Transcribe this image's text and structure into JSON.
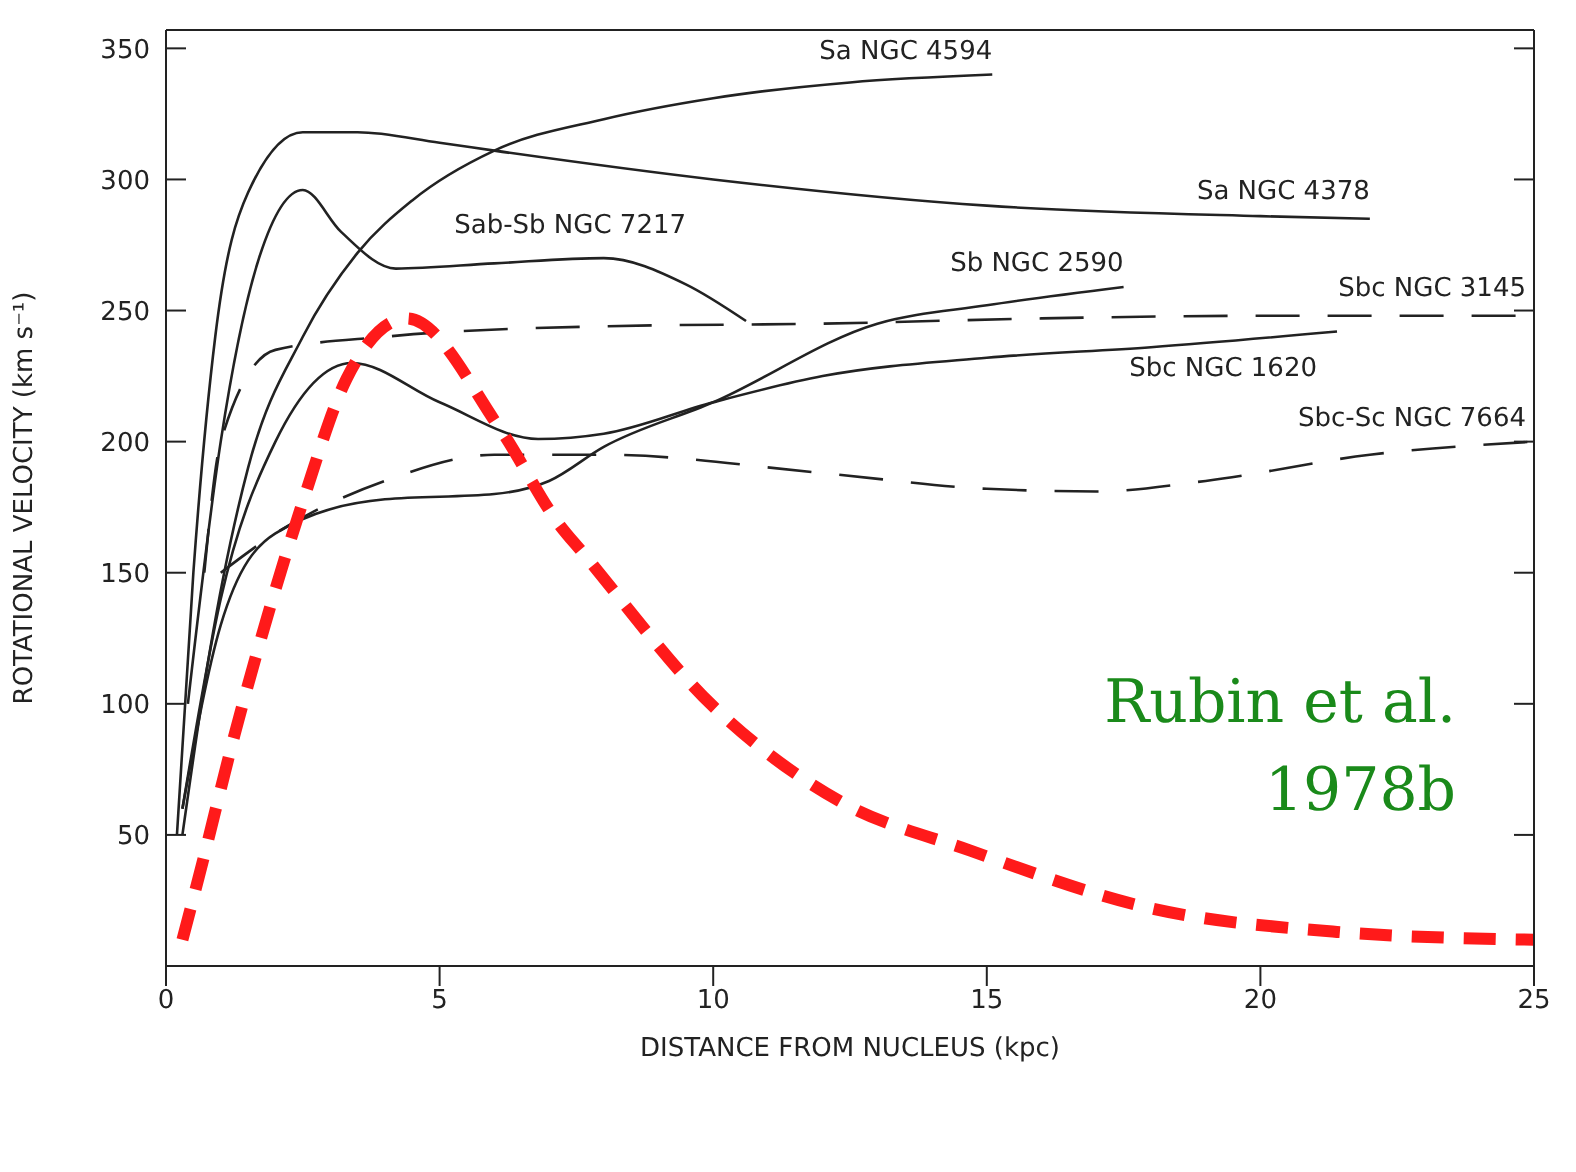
{
  "chart_data": {
    "type": "line",
    "xlabel": "DISTANCE FROM NUCLEUS (kpc)",
    "ylabel": "ROTATIONAL VELOCITY (km s⁻¹)",
    "xlim": [
      0,
      25
    ],
    "xticks": [
      0,
      5,
      10,
      15,
      20,
      25
    ],
    "ylim": [
      0,
      357
    ],
    "yticks": [
      50,
      100,
      150,
      200,
      250,
      300,
      350
    ],
    "marker": "none",
    "annotations": [
      "Rubin et al. 1978b"
    ],
    "series": [
      {
        "name": "Sa NGC 4594",
        "color": "#222222",
        "line_style": "solid",
        "x": [
          0.3,
          0.8,
          1.5,
          2.5,
          3.5,
          4.5,
          6,
          8,
          10,
          12.5,
          15.1
        ],
        "values": [
          50,
          120,
          190,
          240,
          272,
          292,
          311,
          323,
          331,
          337,
          340
        ]
      },
      {
        "name": "Sa NGC 4378",
        "color": "#222222",
        "line_style": "solid",
        "x": [
          0.2,
          0.5,
          0.9,
          1.5,
          2.5,
          3.5,
          5,
          6,
          10,
          15,
          20,
          22
        ],
        "values": [
          50,
          150,
          240,
          295,
          318,
          318,
          314,
          311,
          300,
          290,
          286,
          285
        ]
      },
      {
        "name": "Sab-Sb NGC 7217",
        "color": "#222222",
        "line_style": "solid",
        "x": [
          0.4,
          1,
          1.7,
          2.5,
          3.2,
          4.2,
          6,
          8,
          9.5,
          10.6
        ],
        "values": [
          100,
          200,
          270,
          296,
          280,
          266,
          268,
          270,
          260,
          246
        ]
      },
      {
        "name": "Sb NGC 2590",
        "color": "#222222",
        "line_style": "solid",
        "x": [
          0.3,
          1,
          2,
          4,
          6,
          7,
          8,
          10,
          13,
          15,
          17.5
        ],
        "values": [
          60,
          130,
          165,
          178,
          180,
          185,
          198,
          215,
          245,
          252,
          259
        ]
      },
      {
        "name": "Sbc NGC 1620",
        "color": "#222222",
        "line_style": "solid",
        "x": [
          0.3,
          1,
          2,
          3.4,
          5,
          6.8,
          8,
          10,
          12,
          15,
          18,
          21.4
        ],
        "values": [
          60,
          140,
          200,
          230,
          215,
          201,
          203,
          215,
          225,
          232,
          236,
          242
        ]
      },
      {
        "name": "Sbc NGC 3145",
        "color": "#222222",
        "line_style": "dashed",
        "x": [
          0.7,
          1,
          2,
          4,
          8,
          12,
          16,
          20,
          25
        ],
        "values": [
          150,
          200,
          235,
          240,
          244,
          245,
          247,
          248,
          248
        ]
      },
      {
        "name": "Sbc-Sc NGC 7664",
        "color": "#222222",
        "line_style": "dashed",
        "x": [
          1,
          2,
          4,
          6,
          8,
          12,
          15,
          17,
          19,
          22,
          25
        ],
        "values": [
          150,
          165,
          185,
          195,
          195,
          188,
          182,
          181,
          185,
          195,
          200
        ]
      },
      {
        "color": "#ff1a1a",
        "line_style": "dashed",
        "x": [
          0.3,
          0.6,
          1.25,
          2.5,
          3.3,
          4.4,
          6.1,
          7.2,
          7.6,
          10,
          12.3,
          14.7,
          18,
          21.4,
          25
        ],
        "values": [
          10,
          34,
          88,
          177,
          224,
          247,
          205,
          168,
          158,
          99,
          63,
          44,
          22,
          13,
          10
        ]
      }
    ]
  }
}
